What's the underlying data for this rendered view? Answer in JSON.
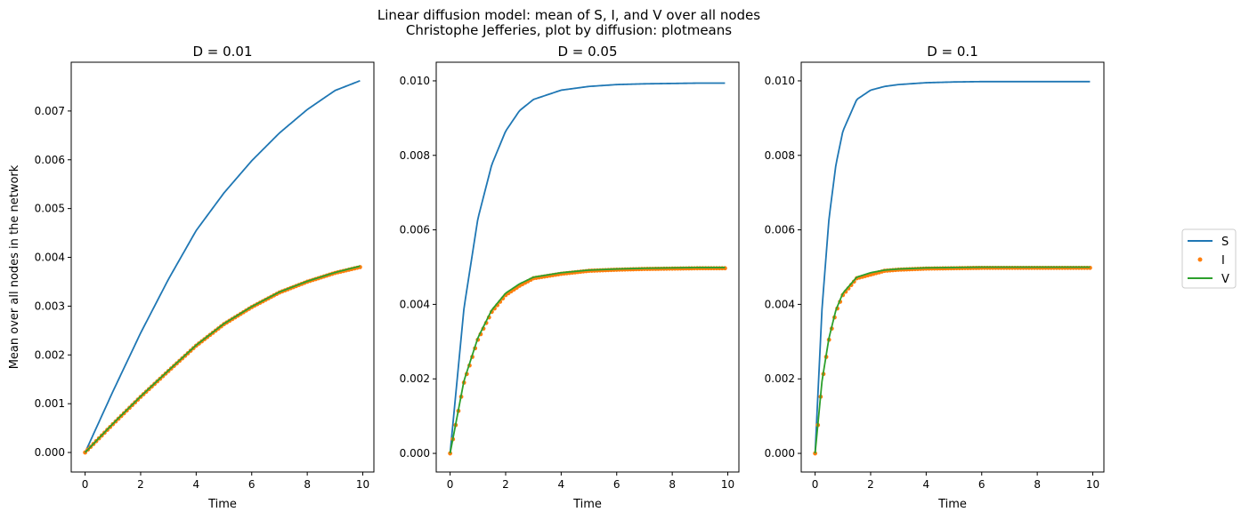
{
  "figure": {
    "title_line1": "Linear diffusion model: mean of S, I, and V over all nodes",
    "title_line2": "Christophe Jefferies, plot by diffusion: plotmeans"
  },
  "legend": {
    "placement": "right",
    "entries": [
      {
        "label": "S",
        "color": "#1f77b4",
        "style": "line"
      },
      {
        "label": "I",
        "color": "#ff7f0e",
        "style": "dots"
      },
      {
        "label": "V",
        "color": "#2ca02c",
        "style": "line"
      }
    ]
  },
  "colors": {
    "S": "#1f77b4",
    "I": "#ff7f0e",
    "V": "#2ca02c",
    "axes": "#000000",
    "background": "#ffffff"
  },
  "chart_data": [
    {
      "type": "line",
      "title": "D = 0.01",
      "xlabel": "Time",
      "ylabel": "Mean over all nodes in the network",
      "xlim": [
        -0.5,
        10.4
      ],
      "ylim": [
        -0.0004,
        0.008
      ],
      "xticks": [
        0,
        2,
        4,
        6,
        8,
        10
      ],
      "xtick_labels": [
        "0",
        "2",
        "4",
        "6",
        "8",
        "10"
      ],
      "yticks": [
        0.0,
        0.001,
        0.002,
        0.003,
        0.004,
        0.005,
        0.006,
        0.007
      ],
      "ytick_labels": [
        "0.000",
        "0.001",
        "0.002",
        "0.003",
        "0.004",
        "0.005",
        "0.006",
        "0.007"
      ],
      "grid": false,
      "series": [
        {
          "name": "S",
          "x": [
            0,
            1,
            2,
            3,
            4,
            5,
            6,
            7,
            8,
            9,
            9.9
          ],
          "values": [
            0.0,
            0.00125,
            0.00245,
            0.00355,
            0.00455,
            0.00532,
            0.00598,
            0.00655,
            0.00703,
            0.00742,
            0.00762
          ]
        },
        {
          "name": "I",
          "x": [
            0,
            1,
            2,
            3,
            4,
            5,
            6,
            7,
            8,
            9,
            9.9
          ],
          "values": [
            0.0,
            0.00058,
            0.00114,
            0.00167,
            0.00219,
            0.00263,
            0.00298,
            0.00328,
            0.0035,
            0.00368,
            0.0038
          ]
        },
        {
          "name": "V",
          "x": [
            0,
            1,
            2,
            3,
            4,
            5,
            6,
            7,
            8,
            9,
            9.9
          ],
          "values": [
            0.0,
            0.00059,
            0.00115,
            0.00168,
            0.0022,
            0.00264,
            0.00299,
            0.00329,
            0.00351,
            0.00369,
            0.00382
          ]
        }
      ]
    },
    {
      "type": "line",
      "title": "D = 0.05",
      "xlabel": "Time",
      "ylabel": "",
      "xlim": [
        -0.5,
        10.4
      ],
      "ylim": [
        -0.0005,
        0.0105
      ],
      "xticks": [
        0,
        2,
        4,
        6,
        8,
        10
      ],
      "xtick_labels": [
        "0",
        "2",
        "4",
        "6",
        "8",
        "10"
      ],
      "yticks": [
        0.0,
        0.002,
        0.004,
        0.006,
        0.008,
        0.01
      ],
      "ytick_labels": [
        "0.000",
        "0.002",
        "0.004",
        "0.006",
        "0.008",
        "0.010"
      ],
      "grid": false,
      "series": [
        {
          "name": "S",
          "x": [
            0,
            0.5,
            1,
            1.5,
            2,
            2.5,
            3,
            4,
            5,
            6,
            7,
            8,
            9,
            9.9
          ],
          "values": [
            0.0,
            0.0039,
            0.0063,
            0.00775,
            0.00865,
            0.0092,
            0.0095,
            0.00975,
            0.00985,
            0.0099,
            0.00992,
            0.00993,
            0.00994,
            0.00994
          ]
        },
        {
          "name": "I",
          "x": [
            0,
            0.5,
            1,
            1.5,
            2,
            2.5,
            3,
            4,
            5,
            6,
            7,
            8,
            9,
            9.9
          ],
          "values": [
            0.0,
            0.0019,
            0.00305,
            0.0038,
            0.00425,
            0.0045,
            0.0047,
            0.00482,
            0.0049,
            0.00493,
            0.00495,
            0.00496,
            0.00497,
            0.00497
          ]
        },
        {
          "name": "V",
          "x": [
            0,
            0.5,
            1,
            1.5,
            2,
            2.5,
            3,
            4,
            5,
            6,
            7,
            8,
            9,
            9.9
          ],
          "values": [
            0.0,
            0.00195,
            0.0031,
            0.00385,
            0.0043,
            0.00455,
            0.00473,
            0.00485,
            0.00492,
            0.00495,
            0.00497,
            0.00498,
            0.00499,
            0.00499
          ]
        }
      ]
    },
    {
      "type": "line",
      "title": "D = 0.1",
      "xlabel": "Time",
      "ylabel": "",
      "xlim": [
        -0.5,
        10.4
      ],
      "ylim": [
        -0.0005,
        0.0105
      ],
      "xticks": [
        0,
        2,
        4,
        6,
        8,
        10
      ],
      "xtick_labels": [
        "0",
        "2",
        "4",
        "6",
        "8",
        "10"
      ],
      "yticks": [
        0.0,
        0.002,
        0.004,
        0.006,
        0.008,
        0.01
      ],
      "ytick_labels": [
        "0.000",
        "0.002",
        "0.004",
        "0.006",
        "0.008",
        "0.010"
      ],
      "grid": false,
      "series": [
        {
          "name": "S",
          "x": [
            0,
            0.25,
            0.5,
            0.75,
            1,
            1.5,
            2,
            2.5,
            3,
            4,
            5,
            6,
            7,
            8,
            9,
            9.9
          ],
          "values": [
            0.0,
            0.0039,
            0.0063,
            0.00775,
            0.00865,
            0.0095,
            0.00975,
            0.00985,
            0.0099,
            0.00995,
            0.00997,
            0.00998,
            0.00998,
            0.00998,
            0.00998,
            0.00998
          ]
        },
        {
          "name": "I",
          "x": [
            0,
            0.25,
            0.5,
            0.75,
            1,
            1.5,
            2,
            2.5,
            3,
            4,
            5,
            6,
            7,
            8,
            9,
            9.9
          ],
          "values": [
            0.0,
            0.0019,
            0.00305,
            0.0038,
            0.00425,
            0.0047,
            0.0048,
            0.0049,
            0.00493,
            0.00496,
            0.00497,
            0.00498,
            0.00498,
            0.00498,
            0.00498,
            0.00498
          ]
        },
        {
          "name": "V",
          "x": [
            0,
            0.25,
            0.5,
            0.75,
            1,
            1.5,
            2,
            2.5,
            3,
            4,
            5,
            6,
            7,
            8,
            9,
            9.9
          ],
          "values": [
            0.0,
            0.00195,
            0.0031,
            0.00385,
            0.0043,
            0.00473,
            0.00485,
            0.00492,
            0.00495,
            0.00498,
            0.00499,
            0.005,
            0.005,
            0.005,
            0.005,
            0.005
          ]
        }
      ]
    }
  ]
}
